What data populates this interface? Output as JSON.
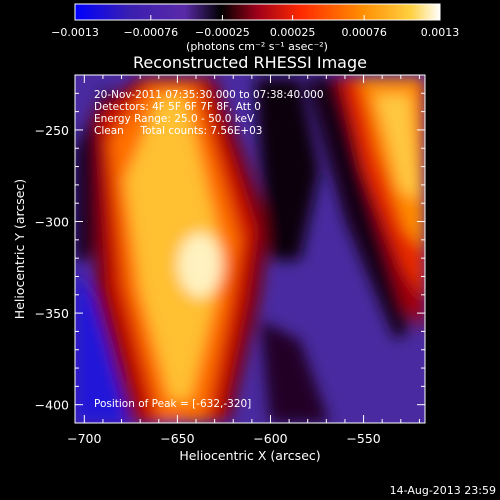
{
  "chart_data": {
    "type": "heatmap",
    "title": "Reconstructed RHESSI Image",
    "xlabel": "Heliocentric X (arcsec)",
    "ylabel": "Heliocentric Y (arcsec)",
    "xlim": [
      -705,
      -517
    ],
    "ylim": [
      -410,
      -220
    ],
    "x_ticks": [
      -700,
      -650,
      -600,
      -550
    ],
    "x_tick_labels": [
      "−700",
      "−650",
      "−600",
      "−550"
    ],
    "y_ticks": [
      -250,
      -300,
      -350,
      -400
    ],
    "y_tick_labels": [
      "−250",
      "−300",
      "−350",
      "−400"
    ],
    "colorbar": {
      "min": -0.0013,
      "max": 0.0013,
      "ticks": [
        -0.0013,
        -0.00076,
        -0.00025,
        0.00025,
        0.00076,
        0.0013
      ],
      "tick_labels": [
        "−0.0013",
        "−0.00076",
        "−0.00025",
        "0.00025",
        "0.00076",
        "0.0013"
      ],
      "units": "(photons cm⁻² s⁻¹ asec⁻²)",
      "colormap": [
        "#0000ff",
        "#3a1fb0",
        "#5a2aa8",
        "#000000",
        "#a0001a",
        "#ff2a00",
        "#ff8a00",
        "#ffd040",
        "#ffffff"
      ]
    },
    "annotations": {
      "time_range": "20-Nov-2011 07:35:30.000 to 07:38:40.000",
      "detectors": "Detectors: 4F 5F 6F 7F 8F, Att 0",
      "energy": "Energy Range: 25.0 - 50.0 keV",
      "method": "Clean     Total counts: 7.56E+03",
      "peak": "Position of Peak = [-632,-320]"
    },
    "peak_position": [
      -632,
      -320
    ]
  },
  "footer": {
    "timestamp": "14-Aug-2013 23:59"
  }
}
